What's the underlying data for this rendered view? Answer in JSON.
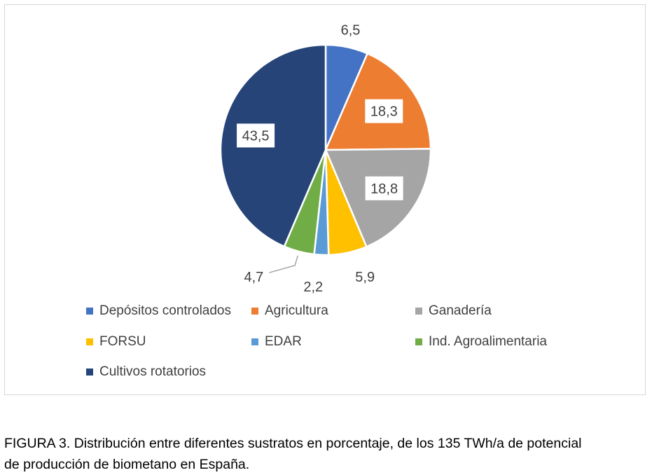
{
  "chart_data": {
    "type": "pie",
    "categories": [
      "Depósitos controlados",
      "Agricultura",
      "Ganadería",
      "FORSU",
      "EDAR",
      "Ind. Agroalimentaria",
      "Cultivos rotatorios"
    ],
    "values": [
      6.5,
      18.3,
      18.8,
      5.9,
      2.2,
      4.7,
      43.5
    ],
    "value_labels": [
      "6,5",
      "18,3",
      "18,8",
      "5,9",
      "2,2",
      "4,7",
      "43,5"
    ],
    "colors": [
      "#4472c4",
      "#ed7d31",
      "#a5a5a5",
      "#ffc000",
      "#5b9bd5",
      "#70ad47",
      "#264478"
    ],
    "legend_position": "bottom",
    "start_angle": "12 o'clock, clockwise"
  },
  "caption": {
    "line1": "FIGURA 3.  Distribución entre diferentes sustratos en porcentaje, de los 135 TWh/a de potencial",
    "line2": "de producción de biometano en España."
  }
}
